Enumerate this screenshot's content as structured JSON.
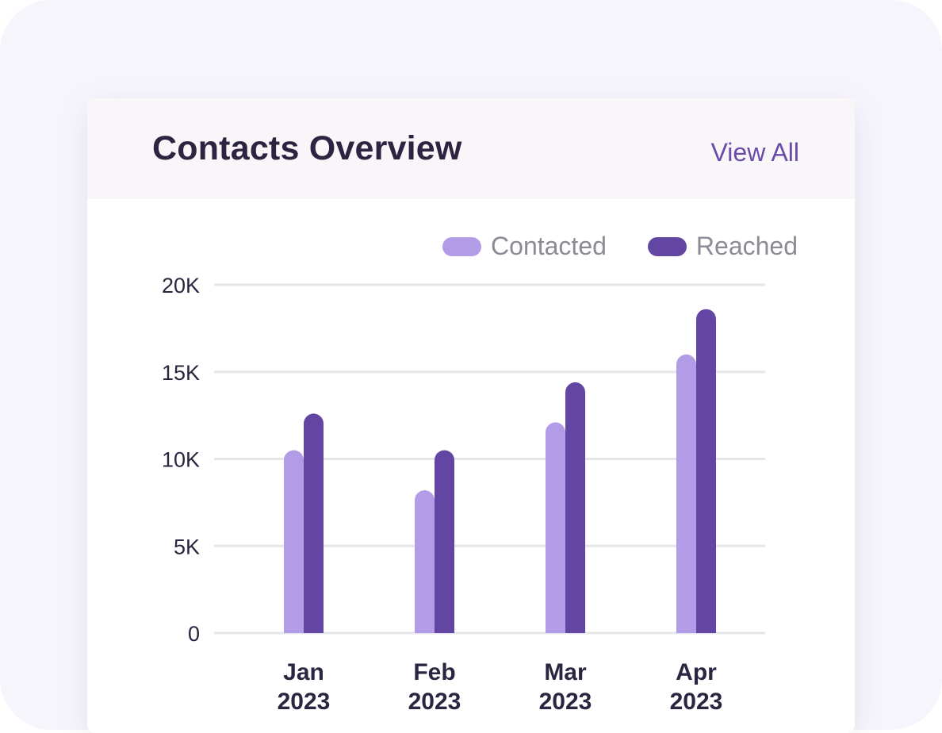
{
  "header": {
    "title": "Contacts Overview",
    "view_all_label": "View All"
  },
  "legend": [
    {
      "label": "Contacted",
      "color": "#b39ce7"
    },
    {
      "label": "Reached",
      "color": "#6346a3"
    }
  ],
  "chart_data": {
    "type": "bar",
    "categories": [
      "Jan",
      "Feb",
      "Mar",
      "Apr"
    ],
    "category_sublabels": [
      "2023",
      "2023",
      "2023",
      "2023"
    ],
    "series": [
      {
        "name": "Contacted",
        "color": "#b39ce7",
        "values": [
          10500,
          8200,
          12100,
          16000
        ]
      },
      {
        "name": "Reached",
        "color": "#6346a3",
        "values": [
          12600,
          10500,
          14400,
          18600
        ]
      }
    ],
    "y_ticks": [
      "0",
      "5K",
      "10K",
      "15K",
      "20K"
    ],
    "y_tick_values": [
      0,
      5000,
      10000,
      15000,
      20000
    ],
    "ylim": [
      0,
      20000
    ],
    "grid": true,
    "legend_position": "top-right"
  }
}
